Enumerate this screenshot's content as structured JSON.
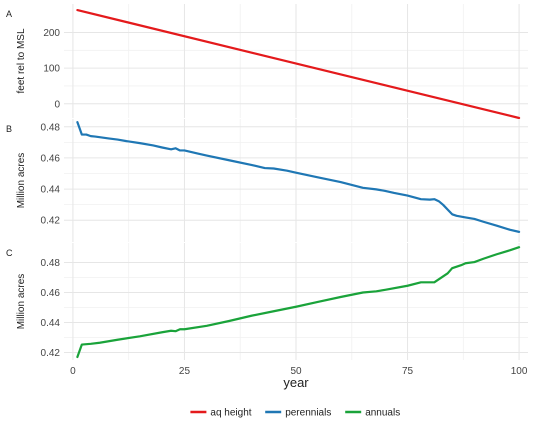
{
  "chart_data": {
    "type": "line",
    "xlabel": "year",
    "x_ticks": [
      0,
      25,
      50,
      75,
      100
    ],
    "xlim": [
      -2,
      102
    ],
    "legend": {
      "placement": "bottom",
      "items": [
        {
          "label": "aq height",
          "color": "#e41a1c"
        },
        {
          "label": "perennials",
          "color": "#1f77b4"
        },
        {
          "label": "annuals",
          "color": "#1aa33a"
        }
      ]
    },
    "panels": [
      {
        "tag": "A",
        "ylabel": "feet rel to MSL",
        "ylim": [
          -40,
          280
        ],
        "y_ticks": [
          0,
          100,
          200
        ],
        "series": {
          "name": "aq height",
          "color": "#e41a1c",
          "points": [
            [
              1,
              263
            ],
            [
              100,
              -40
            ]
          ]
        }
      },
      {
        "tag": "B",
        "ylabel": "Million acres",
        "ylim": [
          0.406,
          0.485
        ],
        "y_ticks": [
          0.42,
          0.44,
          0.46,
          0.48
        ],
        "series": {
          "name": "perennials",
          "color": "#1f77b4",
          "points": [
            [
              1,
              0.483
            ],
            [
              2,
              0.475
            ],
            [
              3,
              0.475
            ],
            [
              4,
              0.474
            ],
            [
              5,
              0.4737
            ],
            [
              8,
              0.4725
            ],
            [
              10,
              0.4718
            ],
            [
              12,
              0.4708
            ],
            [
              15,
              0.4695
            ],
            [
              18,
              0.468
            ],
            [
              20,
              0.4667
            ],
            [
              22,
              0.4655
            ],
            [
              23,
              0.4662
            ],
            [
              24,
              0.4648
            ],
            [
              25,
              0.4648
            ],
            [
              28,
              0.4628
            ],
            [
              30,
              0.4615
            ],
            [
              35,
              0.4585
            ],
            [
              40,
              0.4555
            ],
            [
              43,
              0.4535
            ],
            [
              45,
              0.4532
            ],
            [
              48,
              0.4518
            ],
            [
              50,
              0.4505
            ],
            [
              55,
              0.4475
            ],
            [
              60,
              0.4445
            ],
            [
              65,
              0.4408
            ],
            [
              68,
              0.4398
            ],
            [
              70,
              0.4388
            ],
            [
              72,
              0.4375
            ],
            [
              75,
              0.4358
            ],
            [
              78,
              0.4335
            ],
            [
              80,
              0.4332
            ],
            [
              81,
              0.4335
            ],
            [
              82,
              0.4322
            ],
            [
              83,
              0.4298
            ],
            [
              84,
              0.4268
            ],
            [
              85,
              0.4238
            ],
            [
              86,
              0.4228
            ],
            [
              88,
              0.4218
            ],
            [
              90,
              0.4208
            ],
            [
              92,
              0.419
            ],
            [
              95,
              0.4165
            ],
            [
              98,
              0.4138
            ],
            [
              100,
              0.4125
            ]
          ]
        }
      },
      {
        "tag": "C",
        "ylabel": "Million acres",
        "ylim": [
          0.415,
          0.493
        ],
        "y_ticks": [
          0.42,
          0.44,
          0.46,
          0.48
        ],
        "series": {
          "name": "annuals",
          "color": "#1aa33a",
          "points": [
            [
              1,
              0.417
            ],
            [
              2,
              0.4253
            ],
            [
              4,
              0.4258
            ],
            [
              6,
              0.4265
            ],
            [
              10,
              0.4285
            ],
            [
              15,
              0.4308
            ],
            [
              20,
              0.4335
            ],
            [
              22,
              0.4345
            ],
            [
              23,
              0.4342
            ],
            [
              24,
              0.4355
            ],
            [
              25,
              0.4355
            ],
            [
              30,
              0.4378
            ],
            [
              35,
              0.441
            ],
            [
              40,
              0.4445
            ],
            [
              45,
              0.4475
            ],
            [
              50,
              0.4505
            ],
            [
              55,
              0.4538
            ],
            [
              60,
              0.457
            ],
            [
              65,
              0.46
            ],
            [
              68,
              0.4608
            ],
            [
              70,
              0.4618
            ],
            [
              75,
              0.4645
            ],
            [
              78,
              0.4668
            ],
            [
              80,
              0.4668
            ],
            [
              81,
              0.4668
            ],
            [
              82,
              0.4688
            ],
            [
              84,
              0.4728
            ],
            [
              85,
              0.4762
            ],
            [
              87,
              0.4782
            ],
            [
              88,
              0.4795
            ],
            [
              90,
              0.4803
            ],
            [
              92,
              0.4825
            ],
            [
              95,
              0.4855
            ],
            [
              98,
              0.4882
            ],
            [
              100,
              0.4902
            ]
          ]
        }
      }
    ]
  }
}
